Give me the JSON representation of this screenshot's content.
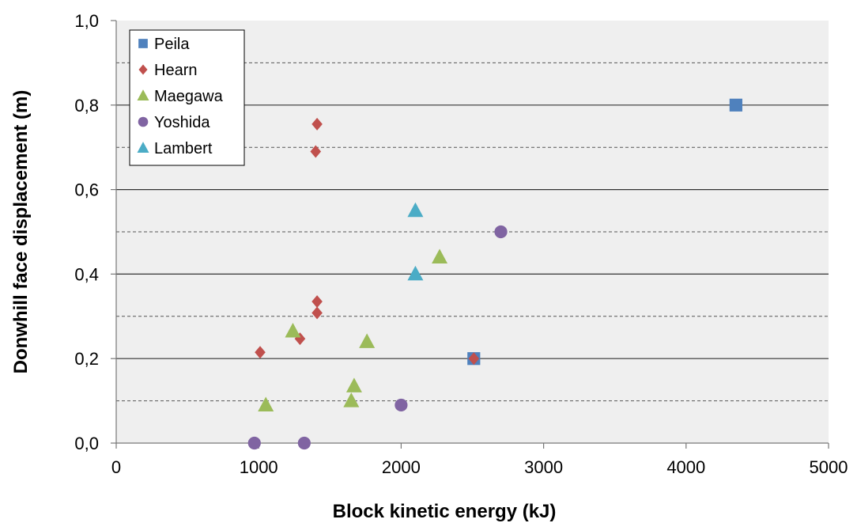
{
  "chart_data": {
    "type": "scatter",
    "title": "",
    "xlabel": "Block kinetic energy (kJ)",
    "ylabel": "Donwhill face displacement (m)",
    "xlim": [
      0,
      5000
    ],
    "ylim": [
      0,
      1.0
    ],
    "x_ticks": [
      0,
      1000,
      2000,
      3000,
      4000,
      5000
    ],
    "x_tick_labels": [
      "0",
      "1000",
      "2000",
      "3000",
      "4000",
      "5000"
    ],
    "y_ticks": [
      0,
      0.2,
      0.4,
      0.6,
      0.8,
      1.0
    ],
    "y_tick_labels": [
      "0,0",
      "0,2",
      "0,4",
      "0,6",
      "0,8",
      "1,0"
    ],
    "major_grid_y": [
      0.2,
      0.4,
      0.6,
      0.8
    ],
    "minor_dashed_grid_y": [
      0.1,
      0.3,
      0.5,
      0.7,
      0.9
    ],
    "plot_background": "#efefef",
    "legend_position": "top-left",
    "series": [
      {
        "name": "Peila",
        "marker": "square",
        "color": "#4f81bd",
        "points": [
          [
            4350,
            0.8
          ],
          [
            2510,
            0.2
          ]
        ]
      },
      {
        "name": "Hearn",
        "marker": "diamond",
        "color": "#c0504d",
        "points": [
          [
            1410,
            0.755
          ],
          [
            1400,
            0.69
          ],
          [
            1410,
            0.335
          ],
          [
            1410,
            0.308
          ],
          [
            1290,
            0.247
          ],
          [
            1010,
            0.215
          ],
          [
            2510,
            0.2
          ]
        ]
      },
      {
        "name": "Maegawa",
        "marker": "triangle",
        "color": "#9bbb59",
        "points": [
          [
            2270,
            0.44
          ],
          [
            1240,
            0.265
          ],
          [
            1760,
            0.24
          ],
          [
            1670,
            0.135
          ],
          [
            1650,
            0.1
          ],
          [
            1050,
            0.09
          ]
        ]
      },
      {
        "name": "Yoshida",
        "marker": "circle",
        "color": "#8064a2",
        "points": [
          [
            2700,
            0.5
          ],
          [
            2000,
            0.09
          ],
          [
            970,
            0.0
          ],
          [
            1320,
            0.0
          ]
        ]
      },
      {
        "name": "Lambert",
        "marker": "triangle",
        "color": "#4bacc6",
        "points": [
          [
            2100,
            0.55
          ],
          [
            2100,
            0.4
          ]
        ]
      }
    ]
  }
}
